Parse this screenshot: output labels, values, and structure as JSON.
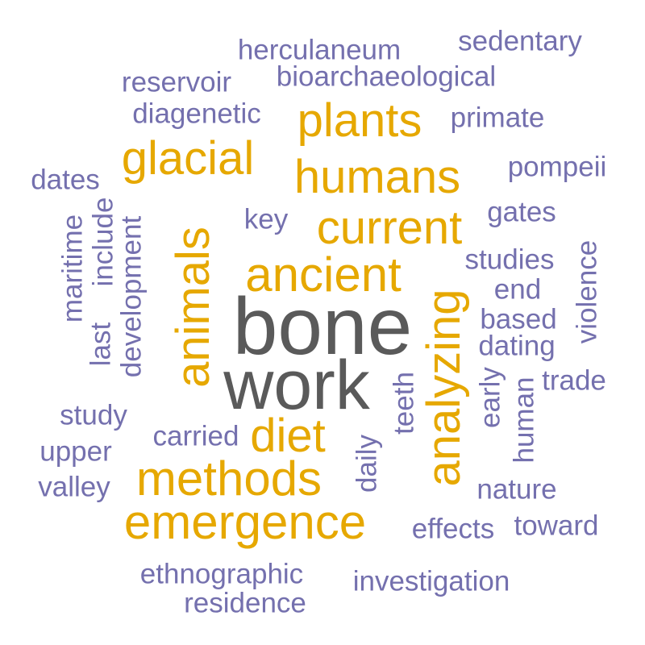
{
  "colors": {
    "dark": "#5a5a5a",
    "gold": "#e6a800",
    "purple": "#7470ae"
  },
  "words": [
    {
      "text": "bone",
      "color": "dark"
    },
    {
      "text": "work",
      "color": "dark"
    },
    {
      "text": "animals",
      "color": "gold"
    },
    {
      "text": "analyzing",
      "color": "gold"
    },
    {
      "text": "ancient",
      "color": "gold"
    },
    {
      "text": "current",
      "color": "gold"
    },
    {
      "text": "methods",
      "color": "gold"
    },
    {
      "text": "emergence",
      "color": "gold"
    },
    {
      "text": "humans",
      "color": "gold"
    },
    {
      "text": "glacial",
      "color": "gold"
    },
    {
      "text": "plants",
      "color": "gold"
    },
    {
      "text": "diet",
      "color": "gold"
    },
    {
      "text": "herculaneum",
      "color": "purple"
    },
    {
      "text": "sedentary",
      "color": "purple"
    },
    {
      "text": "reservoir",
      "color": "purple"
    },
    {
      "text": "bioarchaeological",
      "color": "purple"
    },
    {
      "text": "diagenetic",
      "color": "purple"
    },
    {
      "text": "primate",
      "color": "purple"
    },
    {
      "text": "dates",
      "color": "purple"
    },
    {
      "text": "pompeii",
      "color": "purple"
    },
    {
      "text": "key",
      "color": "purple"
    },
    {
      "text": "gates",
      "color": "purple"
    },
    {
      "text": "maritime",
      "color": "purple"
    },
    {
      "text": "include",
      "color": "purple"
    },
    {
      "text": "last",
      "color": "purple"
    },
    {
      "text": "development",
      "color": "purple"
    },
    {
      "text": "studies",
      "color": "purple"
    },
    {
      "text": "end",
      "color": "purple"
    },
    {
      "text": "violence",
      "color": "purple"
    },
    {
      "text": "based",
      "color": "purple"
    },
    {
      "text": "dating",
      "color": "purple"
    },
    {
      "text": "trade",
      "color": "purple"
    },
    {
      "text": "early",
      "color": "purple"
    },
    {
      "text": "human",
      "color": "purple"
    },
    {
      "text": "teeth",
      "color": "purple"
    },
    {
      "text": "study",
      "color": "purple"
    },
    {
      "text": "carried",
      "color": "purple"
    },
    {
      "text": "upper",
      "color": "purple"
    },
    {
      "text": "daily",
      "color": "purple"
    },
    {
      "text": "valley",
      "color": "purple"
    },
    {
      "text": "nature",
      "color": "purple"
    },
    {
      "text": "effects",
      "color": "purple"
    },
    {
      "text": "toward",
      "color": "purple"
    },
    {
      "text": "ethnographic",
      "color": "purple"
    },
    {
      "text": "investigation",
      "color": "purple"
    },
    {
      "text": "residence",
      "color": "purple"
    }
  ]
}
